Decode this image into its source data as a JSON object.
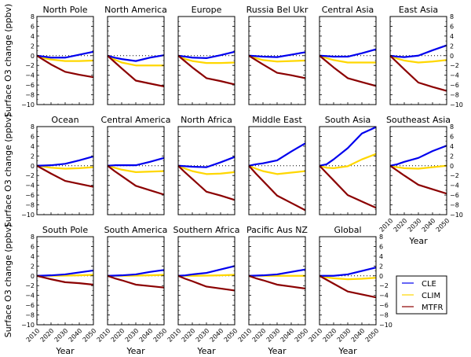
{
  "chart_data": {
    "type": "line",
    "layout": "small-multiples 3x6",
    "ylabel": "Surface O3 change (ppbv)",
    "xlabel": "Year",
    "x": [
      2010,
      2020,
      2030,
      2040,
      2050
    ],
    "xticks": [
      "2010",
      "2020",
      "2030",
      "2040",
      "2050"
    ],
    "yticks": [
      "8",
      "6",
      "4",
      "2",
      "0",
      "−2",
      "−4",
      "−6",
      "−8",
      "−10"
    ],
    "ylim": [
      -10,
      8
    ],
    "zero_line": "dotted",
    "legend": {
      "position": "bottom-right",
      "entries": [
        {
          "name": "CLE",
          "color": "#0000ee"
        },
        {
          "name": "CLIM",
          "color": "#ffd700"
        },
        {
          "name": "MTFR",
          "color": "#8b0000"
        }
      ]
    },
    "series_x": [
      2010,
      2015,
      2020,
      2030,
      2040,
      2050
    ],
    "panels": [
      {
        "title": "North Pole",
        "row": 0,
        "col": 0,
        "CLE": [
          0,
          -0.2,
          -0.4,
          -0.4,
          0.2,
          0.8
        ],
        "CLIM": [
          0,
          -0.5,
          -0.8,
          -1.1,
          -1.1,
          -1.0
        ],
        "MTFR": [
          0,
          -0.9,
          -1.8,
          -3.3,
          -3.9,
          -4.4
        ]
      },
      {
        "title": "North America",
        "row": 0,
        "col": 1,
        "CLE": [
          0,
          -0.4,
          -0.7,
          -1.1,
          -0.4,
          0.1
        ],
        "CLIM": [
          0,
          -0.8,
          -1.4,
          -2.0,
          -2.0,
          -2.0
        ],
        "MTFR": [
          0,
          -1.3,
          -2.6,
          -5.1,
          -5.7,
          -6.3
        ]
      },
      {
        "title": "Europe",
        "row": 0,
        "col": 2,
        "CLE": [
          0,
          -0.2,
          -0.4,
          -0.5,
          0.1,
          0.8
        ],
        "CLIM": [
          0,
          -0.7,
          -1.1,
          -1.5,
          -1.5,
          -1.4
        ],
        "MTFR": [
          0,
          -1.2,
          -2.4,
          -4.6,
          -5.2,
          -5.9
        ]
      },
      {
        "title": "Russia Bel Ukr",
        "row": 0,
        "col": 3,
        "CLE": [
          0,
          -0.1,
          -0.2,
          -0.3,
          0.2,
          0.7
        ],
        "CLIM": [
          0,
          -0.5,
          -0.9,
          -1.2,
          -1.1,
          -1.0
        ],
        "MTFR": [
          0,
          -0.9,
          -1.8,
          -3.5,
          -4.0,
          -4.6
        ]
      },
      {
        "title": "Central Asia",
        "row": 0,
        "col": 4,
        "CLE": [
          0,
          -0.1,
          -0.2,
          -0.2,
          0.5,
          1.3
        ],
        "CLIM": [
          0,
          -0.5,
          -0.9,
          -1.4,
          -1.4,
          -1.4
        ],
        "MTFR": [
          0,
          -1.2,
          -2.4,
          -4.6,
          -5.4,
          -6.2
        ]
      },
      {
        "title": "East Asia",
        "row": 0,
        "col": 5,
        "CLE": [
          0,
          -0.2,
          -0.3,
          0.0,
          1.1,
          2.1
        ],
        "CLIM": [
          0,
          -0.6,
          -1.0,
          -1.4,
          -1.2,
          -0.9
        ],
        "MTFR": [
          0,
          -1.4,
          -2.8,
          -5.5,
          -6.4,
          -7.2
        ]
      },
      {
        "title": "Ocean",
        "row": 1,
        "col": 0,
        "CLE": [
          0,
          0.05,
          0.1,
          0.4,
          1.1,
          1.9
        ],
        "CLIM": [
          0,
          -0.2,
          -0.4,
          -0.6,
          -0.5,
          -0.3
        ],
        "MTFR": [
          0,
          -0.8,
          -1.6,
          -3.1,
          -3.7,
          -4.3
        ]
      },
      {
        "title": "Central America",
        "row": 1,
        "col": 1,
        "CLE": [
          0,
          0.1,
          0.1,
          0.1,
          0.8,
          1.6
        ],
        "CLIM": [
          0,
          -0.4,
          -0.8,
          -1.3,
          -1.2,
          -1.1
        ],
        "MTFR": [
          0,
          -1.1,
          -2.1,
          -4.1,
          -5.0,
          -5.9
        ]
      },
      {
        "title": "North Africa",
        "row": 1,
        "col": 2,
        "CLE": [
          0,
          -0.1,
          -0.2,
          -0.3,
          0.7,
          1.8
        ],
        "CLIM": [
          0,
          -0.6,
          -1.1,
          -1.7,
          -1.6,
          -1.3
        ],
        "MTFR": [
          0,
          -1.4,
          -2.7,
          -5.3,
          -6.1,
          -7.0
        ]
      },
      {
        "title": "Middle East",
        "row": 1,
        "col": 3,
        "CLE": [
          0,
          0.3,
          0.5,
          1.1,
          2.9,
          4.6
        ],
        "CLIM": [
          0,
          -0.6,
          -1.1,
          -1.7,
          -1.4,
          -1.1
        ],
        "MTFR": [
          0,
          -1.6,
          -3.1,
          -6.1,
          -7.6,
          -9.1
        ]
      },
      {
        "title": "South Asia",
        "row": 1,
        "col": 4,
        "CLE": [
          0,
          0.3,
          1.3,
          3.6,
          6.6,
          7.9
        ],
        "CLIM": [
          0,
          -0.4,
          -0.5,
          -0.1,
          1.3,
          2.4
        ],
        "MTFR": [
          0,
          -1.5,
          -3.0,
          -6.0,
          -7.3,
          -8.6
        ]
      },
      {
        "title": "Southeast Asia",
        "row": 1,
        "col": 5,
        "CLE": [
          0,
          0.3,
          0.8,
          1.6,
          3.0,
          4.1
        ],
        "CLIM": [
          0,
          -0.3,
          -0.5,
          -0.6,
          -0.3,
          0.0
        ],
        "MTFR": [
          0,
          -1.0,
          -2.0,
          -3.9,
          -4.8,
          -5.7
        ]
      },
      {
        "title": "South Pole",
        "row": 2,
        "col": 0,
        "CLE": [
          0,
          0.05,
          0.1,
          0.3,
          0.7,
          1.1
        ],
        "CLIM": [
          0,
          0.0,
          0.0,
          0.05,
          0.1,
          0.2
        ],
        "MTFR": [
          0,
          -0.35,
          -0.7,
          -1.3,
          -1.5,
          -1.8
        ]
      },
      {
        "title": "South America",
        "row": 2,
        "col": 1,
        "CLE": [
          0,
          0.05,
          0.1,
          0.3,
          0.8,
          1.2
        ],
        "CLIM": [
          0,
          0.0,
          0.0,
          0.05,
          0.1,
          0.2
        ],
        "MTFR": [
          0,
          -0.5,
          -0.9,
          -1.8,
          -2.1,
          -2.4
        ]
      },
      {
        "title": "Southern Africa",
        "row": 2,
        "col": 2,
        "CLE": [
          0,
          0.1,
          0.3,
          0.6,
          1.3,
          2.0
        ],
        "CLIM": [
          0,
          0.0,
          0.0,
          0.05,
          0.1,
          0.2
        ],
        "MTFR": [
          0,
          -0.6,
          -1.1,
          -2.2,
          -2.6,
          -3.0
        ]
      },
      {
        "title": "Pacific Aus NZ",
        "row": 2,
        "col": 3,
        "CLE": [
          0,
          0.05,
          0.1,
          0.3,
          0.8,
          1.3
        ],
        "CLIM": [
          0,
          0.0,
          0.0,
          0.0,
          0.0,
          0.0
        ],
        "MTFR": [
          0,
          -0.5,
          -0.9,
          -1.8,
          -2.2,
          -2.6
        ]
      },
      {
        "title": "Global",
        "row": 2,
        "col": 4,
        "CLE": [
          0,
          0.0,
          0.0,
          0.3,
          1.0,
          1.7
        ],
        "CLIM": [
          0,
          -0.3,
          -0.5,
          -0.7,
          -0.6,
          -0.4
        ],
        "MTFR": [
          0,
          -0.8,
          -1.6,
          -3.2,
          -3.8,
          -4.4
        ]
      }
    ]
  }
}
